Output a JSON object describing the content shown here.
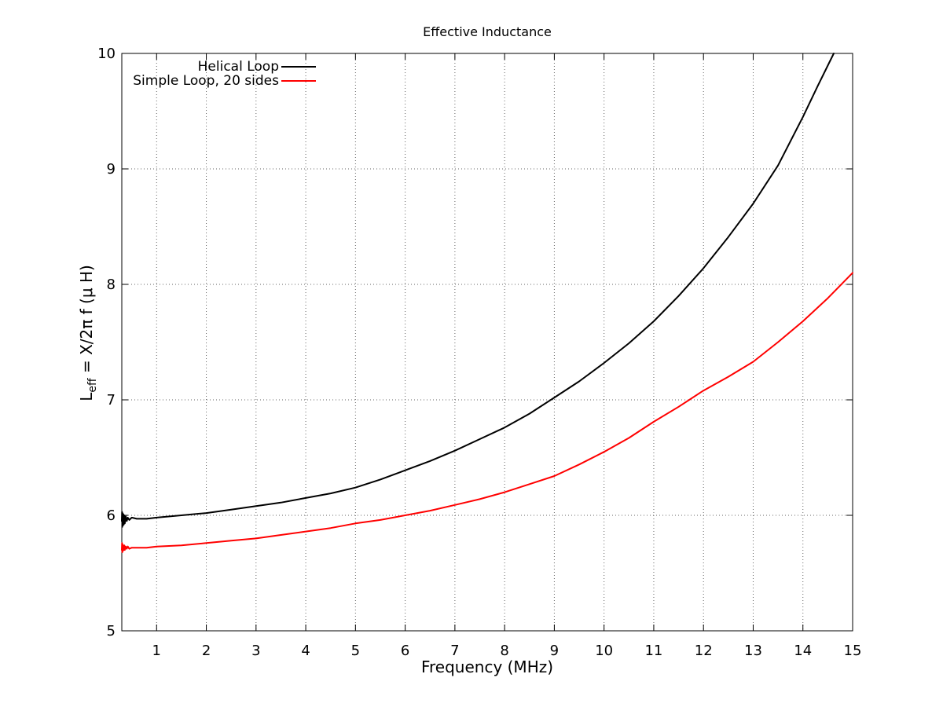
{
  "title": "Effective Inductance",
  "axes": {
    "x_label": "Frequency (MHz)",
    "y_label_prefix": "L",
    "y_label_sub": "eff",
    "y_label_suffix": " = X/2π f (μ H)"
  },
  "legend": [
    {
      "label": "Helical Loop",
      "color": "#000000"
    },
    {
      "label": "Simple Loop, 20 sides",
      "color": "#ff0000"
    }
  ],
  "colors": {
    "background": "#ffffff",
    "axis": "#000000",
    "grid": "#666666",
    "series_helical": "#000000",
    "series_simple": "#ff0000"
  },
  "chart_data": {
    "type": "line",
    "title": "Effective Inductance",
    "xlabel": "Frequency (MHz)",
    "ylabel": "L_eff = X/2π f (μ H)",
    "xlim": [
      0.3,
      15
    ],
    "ylim": [
      5,
      10
    ],
    "x_ticks": [
      1,
      2,
      3,
      4,
      5,
      6,
      7,
      8,
      9,
      10,
      11,
      12,
      13,
      14,
      15
    ],
    "y_ticks": [
      5,
      6,
      7,
      8,
      9,
      10
    ],
    "grid": true,
    "legend_position": "top-left-inside",
    "series": [
      {
        "name": "Helical Loop",
        "color": "#000000",
        "points": [
          [
            0.3,
            5.95
          ],
          [
            0.305,
            6.03
          ],
          [
            0.31,
            5.9
          ],
          [
            0.315,
            6.02
          ],
          [
            0.32,
            5.91
          ],
          [
            0.33,
            6.01
          ],
          [
            0.34,
            5.92
          ],
          [
            0.35,
            6.0
          ],
          [
            0.36,
            5.93
          ],
          [
            0.38,
            5.99
          ],
          [
            0.4,
            5.95
          ],
          [
            0.42,
            5.98
          ],
          [
            0.45,
            5.96
          ],
          [
            0.5,
            5.98
          ],
          [
            0.6,
            5.97
          ],
          [
            0.8,
            5.97
          ],
          [
            1.0,
            5.98
          ],
          [
            1.5,
            6.0
          ],
          [
            2.0,
            6.02
          ],
          [
            2.5,
            6.05
          ],
          [
            3.0,
            6.08
          ],
          [
            3.5,
            6.11
          ],
          [
            4.0,
            6.15
          ],
          [
            4.5,
            6.19
          ],
          [
            5.0,
            6.24
          ],
          [
            5.5,
            6.31
          ],
          [
            6.0,
            6.39
          ],
          [
            6.5,
            6.47
          ],
          [
            7.0,
            6.56
          ],
          [
            7.5,
            6.66
          ],
          [
            8.0,
            6.76
          ],
          [
            8.5,
            6.88
          ],
          [
            9.0,
            7.02
          ],
          [
            9.5,
            7.16
          ],
          [
            10.0,
            7.32
          ],
          [
            10.5,
            7.49
          ],
          [
            11.0,
            7.68
          ],
          [
            11.5,
            7.9
          ],
          [
            12.0,
            8.14
          ],
          [
            12.5,
            8.41
          ],
          [
            13.0,
            8.7
          ],
          [
            13.5,
            9.03
          ],
          [
            14.0,
            9.45
          ],
          [
            14.3,
            9.72
          ],
          [
            14.62,
            10.0
          ]
        ]
      },
      {
        "name": "Simple Loop, 20 sides",
        "color": "#ff0000",
        "points": [
          [
            0.3,
            5.7
          ],
          [
            0.305,
            5.76
          ],
          [
            0.31,
            5.68
          ],
          [
            0.315,
            5.75
          ],
          [
            0.32,
            5.69
          ],
          [
            0.33,
            5.74
          ],
          [
            0.34,
            5.7
          ],
          [
            0.35,
            5.74
          ],
          [
            0.36,
            5.7
          ],
          [
            0.38,
            5.73
          ],
          [
            0.4,
            5.71
          ],
          [
            0.42,
            5.73
          ],
          [
            0.45,
            5.71
          ],
          [
            0.5,
            5.72
          ],
          [
            0.6,
            5.72
          ],
          [
            0.8,
            5.72
          ],
          [
            1.0,
            5.73
          ],
          [
            1.5,
            5.74
          ],
          [
            2.0,
            5.76
          ],
          [
            2.5,
            5.78
          ],
          [
            3.0,
            5.8
          ],
          [
            3.5,
            5.83
          ],
          [
            4.0,
            5.86
          ],
          [
            4.5,
            5.89
          ],
          [
            5.0,
            5.93
          ],
          [
            5.5,
            5.96
          ],
          [
            6.0,
            6.0
          ],
          [
            6.5,
            6.04
          ],
          [
            7.0,
            6.09
          ],
          [
            7.5,
            6.14
          ],
          [
            8.0,
            6.2
          ],
          [
            8.5,
            6.27
          ],
          [
            9.0,
            6.34
          ],
          [
            9.5,
            6.44
          ],
          [
            10.0,
            6.55
          ],
          [
            10.5,
            6.67
          ],
          [
            11.0,
            6.81
          ],
          [
            11.5,
            6.94
          ],
          [
            12.0,
            7.08
          ],
          [
            12.5,
            7.2
          ],
          [
            13.0,
            7.33
          ],
          [
            13.5,
            7.5
          ],
          [
            14.0,
            7.68
          ],
          [
            14.5,
            7.88
          ],
          [
            15.0,
            8.1
          ]
        ]
      }
    ]
  }
}
